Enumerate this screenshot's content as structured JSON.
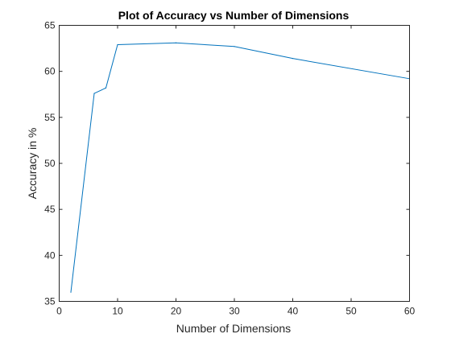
{
  "chart_data": {
    "type": "line",
    "title": "Plot of Accuracy vs Number of Dimensions",
    "xlabel": "Number of Dimensions",
    "ylabel": "Accuracy in %",
    "xlim": [
      0,
      60
    ],
    "ylim": [
      35,
      65
    ],
    "xticks": [
      0,
      10,
      20,
      30,
      40,
      50,
      60
    ],
    "yticks": [
      35,
      40,
      45,
      50,
      55,
      60,
      65
    ],
    "grid": false,
    "series": [
      {
        "color": "#0072BD",
        "x": [
          2,
          6,
          8,
          10,
          20,
          30,
          40,
          60
        ],
        "y": [
          36.0,
          57.6,
          58.2,
          62.9,
          63.1,
          62.7,
          61.4,
          59.2
        ]
      }
    ]
  }
}
